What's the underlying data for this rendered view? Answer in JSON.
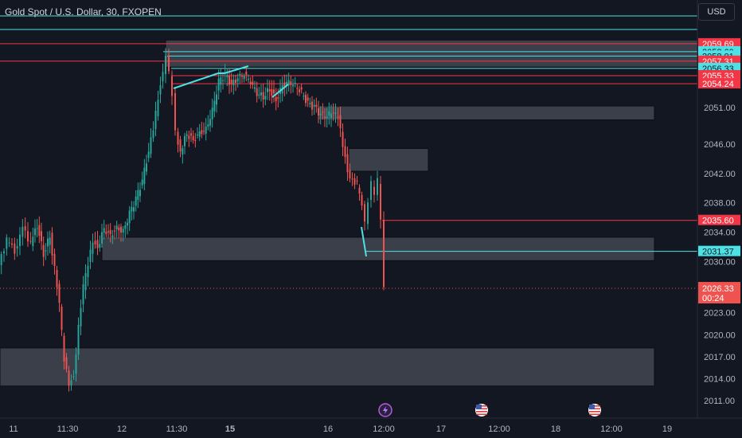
{
  "header": {
    "symbol": "Gold Spot / U.S. Dollar, 30, FXOPEN",
    "currency": "USD"
  },
  "colors": {
    "background": "#131722",
    "up": "#26a69a",
    "down": "#ef5350",
    "level_red": "#f23645",
    "level_cyan": "#4de1e6",
    "zone_fill": "#5d606b",
    "axis_text": "#b2b5be"
  },
  "chart_data": {
    "type": "candlestick",
    "title": "Gold Spot / U.S. Dollar, 30, FXOPEN",
    "ylim": [
      2009.5,
      2065.0
    ],
    "grid": false,
    "y_ticks": [
      "2051.00",
      "2046.00",
      "2042.00",
      "2038.00",
      "2034.00",
      "2030.00",
      "2023.00",
      "2020.00",
      "2017.00",
      "2014.00",
      "2011.00"
    ],
    "y_tick_values": [
      2051.0,
      2046.0,
      2042.0,
      2038.0,
      2034.0,
      2030.0,
      2023.0,
      2020.0,
      2017.0,
      2014.0,
      2011.0
    ],
    "x_ticks": [
      "11",
      "11:30",
      "12",
      "11:30",
      "15",
      "16",
      "12:00",
      "17",
      "12:00",
      "18",
      "12:00",
      "19"
    ],
    "x_tick_bold": [
      false,
      false,
      false,
      false,
      true,
      false,
      false,
      false,
      false,
      false,
      false,
      false
    ],
    "price_labels": [
      {
        "label": "2059.69",
        "value": 2059.69,
        "kind": "red"
      },
      {
        "label": "2058.60",
        "value": 2058.6,
        "kind": "cyan"
      },
      {
        "label": "2058.01",
        "value": 2058.01,
        "kind": "cyan"
      },
      {
        "label": "2057.31",
        "value": 2057.31,
        "kind": "red"
      },
      {
        "label": "2056.33",
        "value": 2056.33,
        "kind": "cyan"
      },
      {
        "label": "2055.33",
        "value": 2055.33,
        "kind": "red"
      },
      {
        "label": "2054.24",
        "value": 2054.24,
        "kind": "red"
      },
      {
        "label": "2035.60",
        "value": 2035.6,
        "kind": "red"
      },
      {
        "label": "2031.37",
        "value": 2031.37,
        "kind": "cyan"
      }
    ],
    "current_price": {
      "label": "2026.33",
      "value": 2026.33,
      "countdown": "00:24"
    },
    "zones": [
      {
        "from": 2056.5,
        "to": 2060.2
      },
      {
        "from": 2049.3,
        "to": 2051.2
      },
      {
        "from": 2042.3,
        "to": 2045.4
      },
      {
        "from": 2030.1,
        "to": 2033.3
      },
      {
        "from": 2013.0,
        "to": 2018.2
      }
    ],
    "events": [
      "lightning",
      "us-flag",
      "us-flag"
    ],
    "series": [
      {
        "x": 0,
        "y": 2029.5
      },
      {
        "x": 10,
        "y": 2033.0
      },
      {
        "x": 20,
        "y": 2031.5
      },
      {
        "x": 30,
        "y": 2034.5
      },
      {
        "x": 40,
        "y": 2032.5
      },
      {
        "x": 48,
        "y": 2035.0
      },
      {
        "x": 56,
        "y": 2031.0
      },
      {
        "x": 64,
        "y": 2033.5
      },
      {
        "x": 70,
        "y": 2029.0
      },
      {
        "x": 76,
        "y": 2024.0
      },
      {
        "x": 82,
        "y": 2016.5
      },
      {
        "x": 88,
        "y": 2013.5
      },
      {
        "x": 94,
        "y": 2014.5
      },
      {
        "x": 100,
        "y": 2021.0
      },
      {
        "x": 106,
        "y": 2026.5
      },
      {
        "x": 112,
        "y": 2029.5
      },
      {
        "x": 118,
        "y": 2033.0
      },
      {
        "x": 124,
        "y": 2032.0
      },
      {
        "x": 132,
        "y": 2034.5
      },
      {
        "x": 140,
        "y": 2033.5
      },
      {
        "x": 148,
        "y": 2034.5
      },
      {
        "x": 156,
        "y": 2034.0
      },
      {
        "x": 164,
        "y": 2036.5
      },
      {
        "x": 172,
        "y": 2038.5
      },
      {
        "x": 180,
        "y": 2041.0
      },
      {
        "x": 188,
        "y": 2045.0
      },
      {
        "x": 194,
        "y": 2048.0
      },
      {
        "x": 200,
        "y": 2052.5
      },
      {
        "x": 206,
        "y": 2056.0
      },
      {
        "x": 210,
        "y": 2058.5
      },
      {
        "x": 214,
        "y": 2055.5
      },
      {
        "x": 218,
        "y": 2053.0
      },
      {
        "x": 222,
        "y": 2047.5
      },
      {
        "x": 228,
        "y": 2045.0
      },
      {
        "x": 236,
        "y": 2047.5
      },
      {
        "x": 244,
        "y": 2046.5
      },
      {
        "x": 252,
        "y": 2047.5
      },
      {
        "x": 260,
        "y": 2048.0
      },
      {
        "x": 268,
        "y": 2050.5
      },
      {
        "x": 276,
        "y": 2054.5
      },
      {
        "x": 284,
        "y": 2055.5
      },
      {
        "x": 292,
        "y": 2054.0
      },
      {
        "x": 300,
        "y": 2055.0
      },
      {
        "x": 308,
        "y": 2055.5
      },
      {
        "x": 316,
        "y": 2054.5
      },
      {
        "x": 324,
        "y": 2053.0
      },
      {
        "x": 332,
        "y": 2052.5
      },
      {
        "x": 340,
        "y": 2053.5
      },
      {
        "x": 348,
        "y": 2052.0
      },
      {
        "x": 356,
        "y": 2054.0
      },
      {
        "x": 364,
        "y": 2054.5
      },
      {
        "x": 372,
        "y": 2054.0
      },
      {
        "x": 380,
        "y": 2053.0
      },
      {
        "x": 388,
        "y": 2051.5
      },
      {
        "x": 396,
        "y": 2051.0
      },
      {
        "x": 404,
        "y": 2050.0
      },
      {
        "x": 412,
        "y": 2049.8
      },
      {
        "x": 420,
        "y": 2050.5
      },
      {
        "x": 426,
        "y": 2049.5
      },
      {
        "x": 432,
        "y": 2046.0
      },
      {
        "x": 438,
        "y": 2042.5
      },
      {
        "x": 444,
        "y": 2041.0
      },
      {
        "x": 450,
        "y": 2040.5
      },
      {
        "x": 456,
        "y": 2037.5
      },
      {
        "x": 460,
        "y": 2035.0
      },
      {
        "x": 464,
        "y": 2038.5
      },
      {
        "x": 468,
        "y": 2040.5
      },
      {
        "x": 472,
        "y": 2039.5
      },
      {
        "x": 476,
        "y": 2041.0
      },
      {
        "x": 480,
        "y": 2036.0
      },
      {
        "x": 484,
        "y": 2026.3
      }
    ]
  }
}
